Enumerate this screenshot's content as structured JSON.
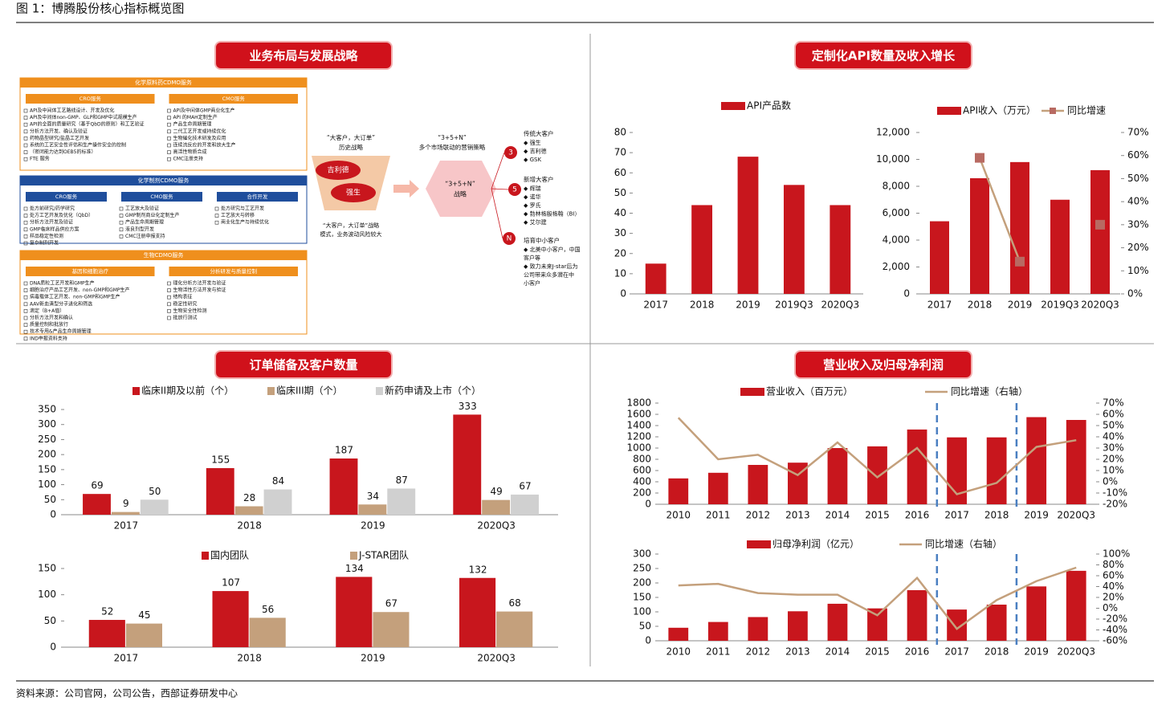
{
  "title": "图 1：博腾股份核心指标概览图",
  "source": "资料来源：公司官网，公司公告，西部证券研发中心",
  "sections": [
    "业务布局与发展战略",
    "定制化API数量及收入增长",
    "订单储备及客户数量",
    "营业收入及归母净利润"
  ],
  "strategy": {
    "panels": [
      {
        "title": "化学原料药CDMO服务",
        "groups": [
          {
            "title": "CRO服务",
            "items": [
              "API及中间体工艺路线设计、开发及优化",
              "API及中间体non-GMP、GLP和GMP中试规模生产",
              "API的全面的质量研究（基于QbD的原则）和工艺验证",
              "分析方法开发、确认及验证",
              "药物晶型研究/盐晶工艺开发",
              "系统的工艺安全性评估和生产操作安全的控制",
              "（密闭能力达到OEB5的标准）",
              "FTE 服务"
            ]
          },
          {
            "title": "CMO服务",
            "items": [
              "API及中间体GMP商业化生产",
              "API 的MAH定制生产",
              "产品生命周期管理",
              "二代工艺开发或持续优化",
              "生物催化技术研发及应用",
              "连续流反应的开发和放大生产",
              "高活性物质合成",
              "CMC注册支持"
            ]
          }
        ]
      },
      {
        "title": "化学制剂CDMO服务",
        "groups": [
          {
            "title": "CRO服务",
            "items": [
              "处方前研究/药学研究",
              "处方工艺开发及优化（QbD）",
              "分析方法开发及验证",
              "GMP临床样品供应方案",
              "样品稳定性检测",
              "复杂制剂开发"
            ]
          },
          {
            "title": "CMO服务",
            "items": [
              "工艺放大及验证",
              "GMP制剂商业化定制生产",
              "产品生命周期管理",
              "液良剂型开发",
              "CMC注册申报支持"
            ]
          },
          {
            "title": "合作开发",
            "items": [
              "处方研究与工艺开发",
              "工艺放大与转移",
              "商业化生产与持续优化"
            ]
          }
        ]
      },
      {
        "title": "生物CDMO服务",
        "groups": [
          {
            "title": "基因和细胞治疗",
            "items": [
              "DNA质粒工艺开发和GMP生产",
              "细胞治疗产品工艺开发、non-GMP和GMP生产",
              "病毒载体工艺开发、non-GMP和GMP生产",
              "AAV新血清型分子进化和筛选",
              "滴定（B+A值）",
              "分析方法开发和确认",
              "质量控制和批放行",
              "技术专用&产品生命周期管理",
              "IND申报资料支持"
            ]
          },
          {
            "title": "分析研发与质量控制",
            "items": [
              "理化分析方法开发与验证",
              "生物活性方法开发与验证",
              "结构表征",
              "稳定性研究",
              "生物安全性检测",
              "批放行测试"
            ]
          }
        ]
      }
    ],
    "history": {
      "title": [
        "“大客户，大订单”",
        "历史战略"
      ],
      "clients": [
        "吉利德",
        "强生"
      ],
      "note": [
        "“大客户，大订单”战略",
        "模式，业务波动风险较大"
      ]
    },
    "plan": {
      "title": [
        "“3+5+N”",
        "多个市场联动的营销策略"
      ],
      "label": [
        "“3+5+N”",
        "战略"
      ]
    },
    "tiers": [
      {
        "num": "3",
        "title": "传统大客户",
        "items": [
          "◆ 强生",
          "◆ 吉利德",
          "◆ GSK"
        ]
      },
      {
        "num": "5",
        "title": "新增大客户",
        "items": [
          "◆ 辉瑞",
          "◆ 诺华",
          "◆ 罗氏",
          "◆ 勃林格殷格翰（BI）",
          "◆ 艾尔建"
        ]
      },
      {
        "num": "N",
        "title": "培育中小客户",
        "items": [
          "◆ 北美中小客户，中国",
          "客户等",
          "◆ 致力未来J-star后为",
          "公司带来众多潜在中",
          "小客户"
        ]
      }
    ]
  },
  "chart_data": [
    {
      "type": "bar",
      "categories": [
        "2017",
        "2018",
        "2019",
        "2019Q3",
        "2020Q3"
      ],
      "series": [
        {
          "name": "API产品数",
          "color": "#c8161d",
          "values": [
            15,
            44,
            68,
            54,
            44
          ]
        }
      ],
      "ylim": [
        0,
        80
      ],
      "yticks": [
        0,
        10,
        20,
        30,
        40,
        50,
        60,
        70,
        80
      ]
    },
    {
      "type": "bar-line",
      "categories": [
        "2017",
        "2018",
        "2019",
        "2019Q3",
        "2020Q3"
      ],
      "series": [
        {
          "name": "API收入（万元）",
          "color": "#c8161d",
          "values": [
            5400,
            8600,
            9800,
            7000,
            9200
          ]
        },
        {
          "name": "同比增速",
          "color": "#c4a07c",
          "axis": "y2",
          "values": [
            null,
            59,
            14,
            null,
            30
          ]
        }
      ],
      "ylim": [
        0,
        12000
      ],
      "yticks": [
        0,
        {
          "value": 2000,
          "label": "2,000"
        },
        {
          "value": 4000,
          "label": "4,000"
        },
        {
          "value": 6000,
          "label": "6,000"
        },
        {
          "value": 8000,
          "label": "8,000"
        },
        {
          "value": 10000,
          "label": "10,000"
        },
        {
          "value": 12000,
          "label": "12,000"
        }
      ],
      "y2lim": [
        0,
        70
      ],
      "y2ticks": [
        {
          "value": 0,
          "label": "0%"
        },
        {
          "value": 10,
          "label": "10%"
        },
        {
          "value": 20,
          "label": "20%"
        },
        {
          "value": 30,
          "label": "30%"
        },
        {
          "value": 40,
          "label": "40%"
        },
        {
          "value": 50,
          "label": "50%"
        },
        {
          "value": 60,
          "label": "60%"
        },
        {
          "value": 70,
          "label": "70%"
        }
      ]
    },
    {
      "type": "bar",
      "categories": [
        "2017",
        "2018",
        "2019",
        "2020Q3"
      ],
      "series": [
        {
          "name": "临床II期及以前（个）",
          "color": "#c8161d",
          "values": [
            69,
            155,
            187,
            333
          ]
        },
        {
          "name": "临床III期（个）",
          "color": "#c4a07c",
          "values": [
            9,
            28,
            34,
            49
          ]
        },
        {
          "name": "新药申请及上市（个）",
          "color": "#d0d0d0",
          "values": [
            50,
            84,
            87,
            67
          ]
        }
      ],
      "ylim": [
        0,
        350
      ],
      "yticks": [
        0,
        50,
        100,
        150,
        200,
        250,
        300,
        350
      ],
      "value_labels": true
    },
    {
      "type": "bar",
      "categories": [
        "2017",
        "2018",
        "2019",
        "2020Q3"
      ],
      "series": [
        {
          "name": "国内团队",
          "color": "#c8161d",
          "values": [
            52,
            107,
            134,
            132
          ]
        },
        {
          "name": "J-STAR团队",
          "color": "#c4a07c",
          "values": [
            45,
            56,
            67,
            68
          ]
        }
      ],
      "ylim": [
        0,
        150
      ],
      "yticks": [
        0,
        50,
        100,
        150
      ],
      "value_labels": true
    },
    {
      "type": "bar-line",
      "categories": [
        "2010",
        "2011",
        "2012",
        "2013",
        "2014",
        "2015",
        "2016",
        "2017",
        "2018",
        "2019",
        "2020Q3"
      ],
      "series": [
        {
          "name": "营业收入（百万元）",
          "color": "#c8161d",
          "values": [
            460,
            560,
            700,
            740,
            1000,
            1030,
            1330,
            1190,
            1190,
            1550,
            1500
          ]
        },
        {
          "name": "同比增速（右轴）",
          "color": "#c4a07c",
          "axis": "y2",
          "values": [
            57,
            20,
            24,
            6,
            35,
            4,
            30,
            -11,
            -1,
            31,
            37
          ]
        }
      ],
      "ylim": [
        0,
        1800
      ],
      "yticks": [
        0,
        200,
        400,
        600,
        800,
        1000,
        1200,
        1400,
        1600,
        1800
      ],
      "y2lim": [
        -20,
        70
      ],
      "y2ticks": [
        {
          "value": -20,
          "label": "-20%"
        },
        {
          "value": -10,
          "label": "-10%"
        },
        {
          "value": 0,
          "label": "0%"
        },
        {
          "value": 10,
          "label": "10%"
        },
        {
          "value": 20,
          "label": "20%"
        },
        {
          "value": 30,
          "label": "30%"
        },
        {
          "value": 40,
          "label": "40%"
        },
        {
          "value": 50,
          "label": "50%"
        },
        {
          "value": 60,
          "label": "60%"
        },
        {
          "value": 70,
          "label": "70%"
        }
      ]
    },
    {
      "type": "bar-line",
      "categories": [
        "2010",
        "2011",
        "2012",
        "2013",
        "2014",
        "2015",
        "2016",
        "2017",
        "2018",
        "2019",
        "2020Q3"
      ],
      "series": [
        {
          "name": "归母净利润（亿元）",
          "color": "#c8161d",
          "values": [
            45,
            65,
            82,
            102,
            128,
            112,
            175,
            108,
            125,
            188,
            242
          ]
        },
        {
          "name": "同比增速（右轴）",
          "color": "#c4a07c",
          "axis": "y2",
          "values": [
            42,
            45,
            28,
            25,
            25,
            -13,
            56,
            -38,
            15,
            50,
            75
          ]
        }
      ],
      "ylim": [
        0,
        300
      ],
      "yticks": [
        0,
        50,
        100,
        150,
        200,
        250,
        300
      ],
      "y2lim": [
        -60,
        100
      ],
      "y2ticks": [
        {
          "value": -60,
          "label": "-60%"
        },
        {
          "value": -40,
          "label": "-40%"
        },
        {
          "value": -20,
          "label": "-20%"
        },
        {
          "value": 0,
          "label": "0%"
        },
        {
          "value": 20,
          "label": "20%"
        },
        {
          "value": 40,
          "label": "40%"
        },
        {
          "value": 60,
          "label": "60%"
        },
        {
          "value": 80,
          "label": "80%"
        },
        {
          "value": 100,
          "label": "100%"
        }
      ]
    }
  ]
}
